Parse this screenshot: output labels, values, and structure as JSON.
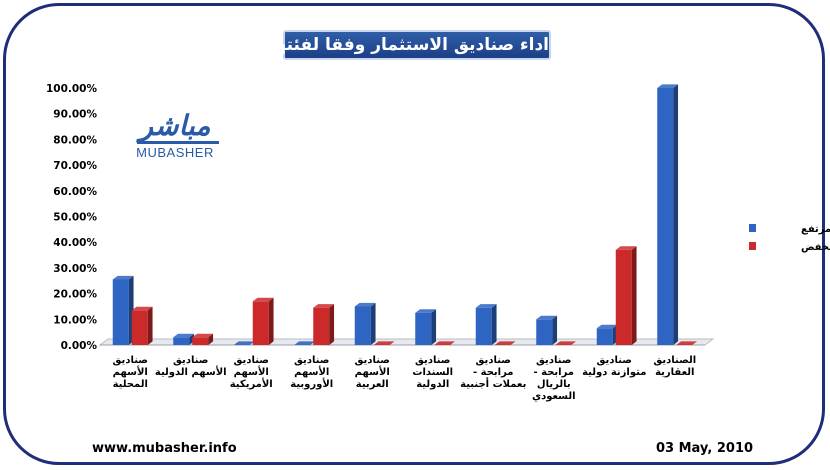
{
  "header": {
    "title": "اداء صناديق الاستثمار وفقا لفئتها"
  },
  "footer": {
    "url": "www.mubasher.info",
    "date": "03 May, 2010"
  },
  "logo": {
    "arabic": "مباشر",
    "english": "MUBASHER"
  },
  "colors": {
    "frame": "#1f2d7a",
    "series_up": "#2e64c2",
    "series_down": "#cc2a2a"
  },
  "chart_data": {
    "type": "bar",
    "title": "اداء صناديق الاستثمار وفقا لفئتها",
    "categories": [
      [
        "صناديق",
        "الأسهم",
        "المحلية"
      ],
      [
        "صناديق",
        "الأسهم الدولية"
      ],
      [
        "صناديق",
        "الأسهم",
        "الأمريكية"
      ],
      [
        "صناديق",
        "الأسهم",
        "الأوروبية"
      ],
      [
        "صناديق",
        "الأسهم",
        "العربية"
      ],
      [
        "صناديق",
        "السندات",
        "الدولية"
      ],
      [
        "صناديق",
        "مرابحة -",
        "بعملات أجنبية"
      ],
      [
        "صناديق",
        "مرابحة -",
        "بالريال",
        "السعودي"
      ],
      [
        "صناديق",
        "متوازنة دولية"
      ],
      [
        "الصناديق",
        "العقارية"
      ]
    ],
    "series": [
      {
        "name": "مرتفع",
        "color": "#2e64c2",
        "values": [
          25.5,
          3,
          0,
          0,
          15,
          12.5,
          14.5,
          10,
          6.5,
          100
        ]
      },
      {
        "name": "منخفض",
        "color": "#cc2a2a",
        "values": [
          13.5,
          3,
          17,
          14.5,
          0,
          0,
          0,
          0,
          37,
          0
        ]
      }
    ],
    "ylim": [
      0,
      100
    ],
    "yticks": [
      "0.00%",
      "10.00%",
      "20.00%",
      "30.00%",
      "40.00%",
      "50.00%",
      "60.00%",
      "70.00%",
      "80.00%",
      "90.00%",
      "100.00%"
    ],
    "legend_position": "right",
    "grid": false
  }
}
